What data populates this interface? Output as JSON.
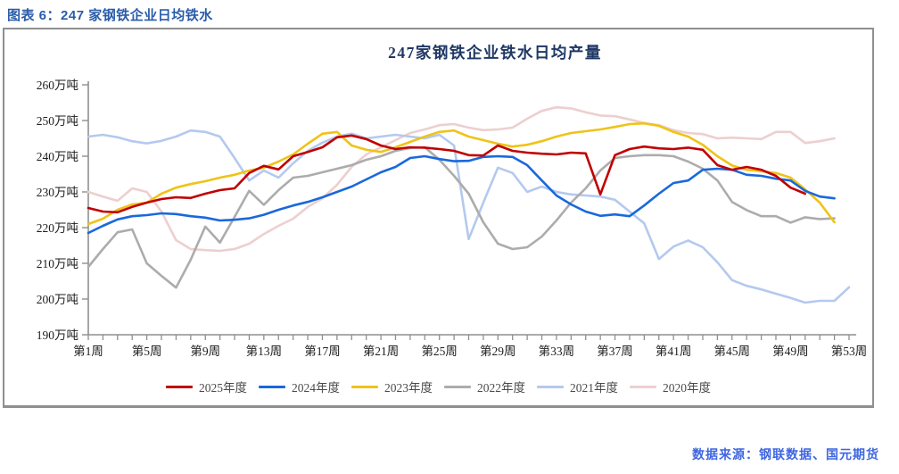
{
  "header": {
    "caption": "图表 6：247 家钢铁企业日均铁水"
  },
  "footer": {
    "source": "数据来源：钢联数据、国元期货"
  },
  "colors": {
    "caption_blue": "#2A5CA9",
    "title_navy": "#1F3864",
    "source_blue": "#3F66E0",
    "axis_gray": "#8F8F8F",
    "box_border_gray": "#8F8F8F",
    "legend_text_gray": "#4a4a4a"
  },
  "chart_data": {
    "type": "line",
    "title": "247家钢铁企业铁水日均产量",
    "xlabel": "",
    "ylabel": "",
    "weeks": 53,
    "ylim": [
      190,
      260
    ],
    "grid": false,
    "legend_position": "bottom",
    "y_ticks": [
      {
        "value": 190,
        "label": "190万吨"
      },
      {
        "value": 200,
        "label": "200万吨"
      },
      {
        "value": 210,
        "label": "210万吨"
      },
      {
        "value": 220,
        "label": "220万吨"
      },
      {
        "value": 230,
        "label": "230万吨"
      },
      {
        "value": 240,
        "label": "240万吨"
      },
      {
        "value": 250,
        "label": "250万吨"
      },
      {
        "value": 260,
        "label": "260万吨"
      }
    ],
    "x_ticks": [
      {
        "week": 1,
        "label": "第1周"
      },
      {
        "week": 5,
        "label": "第5周"
      },
      {
        "week": 9,
        "label": "第9周"
      },
      {
        "week": 13,
        "label": "第13周"
      },
      {
        "week": 17,
        "label": "第17周"
      },
      {
        "week": 21,
        "label": "第21周"
      },
      {
        "week": 25,
        "label": "第25周"
      },
      {
        "week": 29,
        "label": "第29周"
      },
      {
        "week": 33,
        "label": "第33周"
      },
      {
        "week": 37,
        "label": "第37周"
      },
      {
        "week": 41,
        "label": "第41周"
      },
      {
        "week": 45,
        "label": "第45周"
      },
      {
        "week": 49,
        "label": "第49周"
      },
      {
        "week": 53,
        "label": "第53周"
      }
    ],
    "series": [
      {
        "name": "2025年度",
        "color": "#C00000",
        "start_week": 1,
        "values": [
          225.5,
          224.5,
          224.3,
          225.8,
          227,
          228,
          228.5,
          228.3,
          229.5,
          230.5,
          231,
          235.3,
          237.3,
          236.3,
          240,
          241.2,
          242.5,
          245.3,
          245.8,
          244.8,
          243,
          242,
          242.5,
          242.4,
          242,
          241.5,
          240.3,
          240.2,
          243,
          241.5,
          241,
          240.7,
          240.5,
          241,
          240.8,
          229.3,
          240.3,
          242,
          242.7,
          242.2,
          242,
          242.4,
          241.8,
          237.5,
          236.2,
          237,
          236.2,
          234.5,
          231.2,
          229.5
        ]
      },
      {
        "name": "2024年度",
        "color": "#1A68DC",
        "start_week": 1,
        "values": [
          218.5,
          220.5,
          222.3,
          223.2,
          223.5,
          224,
          223.8,
          223.2,
          222.8,
          222,
          222.2,
          222.6,
          223.6,
          225,
          226.2,
          227.2,
          228.5,
          230,
          231.5,
          233.5,
          235.5,
          237,
          239.5,
          240,
          239.2,
          238.6,
          238.7,
          239.8,
          240,
          239.8,
          237.5,
          233.2,
          229,
          226.5,
          224.5,
          223.3,
          223.7,
          223.2,
          226.2,
          229.5,
          232.5,
          233.2,
          236.2,
          236.5,
          236.2,
          234.8,
          234.5,
          233.7,
          233.2,
          230.3,
          228.7,
          228.2
        ]
      },
      {
        "name": "2023年度",
        "color": "#EFC318",
        "start_week": 1,
        "values": [
          221,
          222.5,
          225,
          226.5,
          227,
          229.5,
          231.2,
          232.2,
          233,
          234,
          234.8,
          236,
          236.8,
          238.5,
          240.5,
          243.5,
          246.3,
          246.8,
          243,
          241.8,
          241.2,
          242.5,
          244,
          245.5,
          246.8,
          247.2,
          245.5,
          244.5,
          243.5,
          242.7,
          243.2,
          244.2,
          245.5,
          246.5,
          247,
          247.5,
          248.2,
          249,
          249.2,
          248.5,
          246.8,
          245.5,
          243.2,
          240,
          237.4,
          236.2,
          235.8,
          235.3,
          234,
          230.7,
          227,
          221.5
        ]
      },
      {
        "name": "2022年度",
        "color": "#ACACAC",
        "start_week": 1,
        "values": [
          209,
          214,
          218.7,
          219.5,
          210,
          206.5,
          203.2,
          211,
          220.3,
          215.8,
          223,
          230.3,
          226.4,
          230.5,
          234,
          234.5,
          235.5,
          236.5,
          237.5,
          239,
          240,
          241.5,
          242.3,
          242.5,
          239,
          234.5,
          229.5,
          221.5,
          215.5,
          214,
          214.5,
          217.5,
          222,
          227,
          231,
          236,
          239.5,
          240,
          240.3,
          240.3,
          240,
          238.5,
          236.5,
          233.2,
          227.2,
          224.9,
          223.2,
          223.2,
          221.4,
          222.9,
          222.4,
          222.6
        ]
      },
      {
        "name": "2021年度",
        "color": "#B4C9EE",
        "start_week": 1,
        "values": [
          245.5,
          246,
          245.3,
          244.2,
          243.6,
          244.3,
          245.5,
          247.2,
          246.8,
          245.5,
          239.5,
          233.2,
          236,
          234,
          238,
          241.5,
          243.8,
          245.5,
          246.3,
          245,
          245.5,
          246,
          245.5,
          245,
          246,
          243,
          216.8,
          227,
          236.8,
          235.3,
          230,
          231.5,
          230,
          229.3,
          229,
          228.7,
          227.8,
          224.5,
          221.2,
          211.2,
          214.7,
          216.4,
          214.5,
          210.3,
          205.3,
          203.7,
          202.7,
          201.5,
          200.3,
          199,
          199.5,
          199.5,
          203.3
        ]
      },
      {
        "name": "2020年度",
        "color": "#EDCFCF",
        "start_week": 1,
        "values": [
          230,
          228.7,
          227.5,
          231,
          230,
          224.5,
          216.5,
          214,
          213.7,
          213.5,
          214,
          215.5,
          218.2,
          220.5,
          222.5,
          225.8,
          228.2,
          232,
          237,
          240.5,
          242.5,
          244.5,
          246.5,
          247.5,
          248.7,
          249,
          248,
          247.3,
          247.5,
          248,
          250.5,
          252.7,
          253.7,
          253.4,
          252.3,
          251.4,
          251.2,
          250.3,
          249.3,
          248.7,
          247.3,
          246.5,
          246.2,
          245,
          245.2,
          245,
          244.8,
          246.8,
          246.8,
          243.7,
          244.2,
          245
        ]
      }
    ]
  }
}
